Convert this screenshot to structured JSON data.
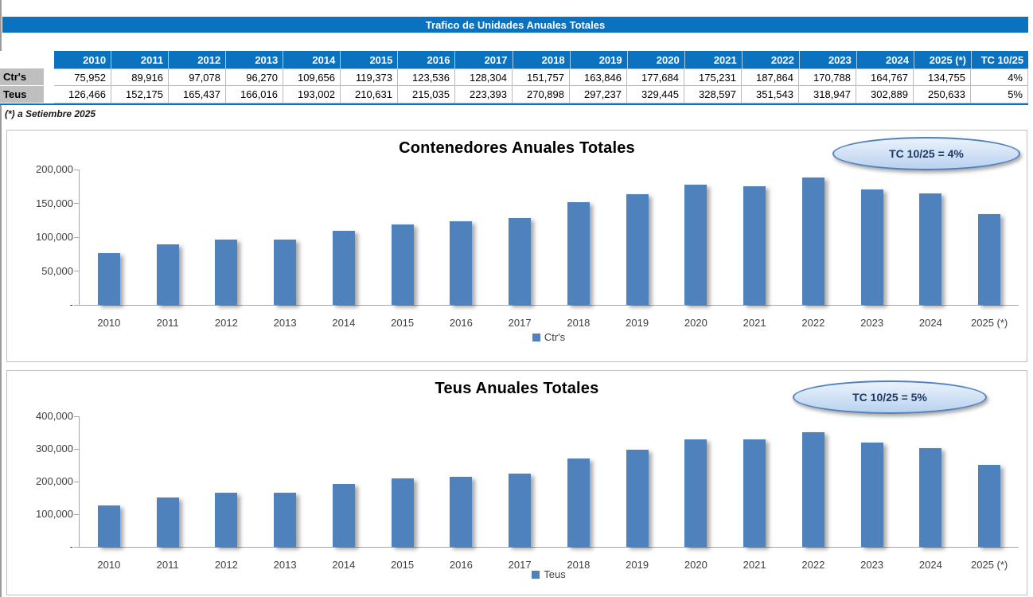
{
  "titlebar": {
    "text": "Trafico de Unidades Anuales Totales"
  },
  "note": "(*) a Setiembre 2025",
  "colors": {
    "header_blue": "#0b72c0",
    "bar_blue": "#4f81bd",
    "row_label_gray": "#bfbfbf",
    "badge_border": "#4f81bd",
    "badge_text": "#1f3864"
  },
  "table": {
    "corner": "",
    "columns": [
      "2010",
      "2011",
      "2012",
      "2013",
      "2014",
      "2015",
      "2016",
      "2017",
      "2018",
      "2019",
      "2020",
      "2021",
      "2022",
      "2023",
      "2024",
      "2025 (*)",
      "TC 10/25"
    ],
    "rows": [
      {
        "label": "Ctr's",
        "values": [
          "75,952",
          "89,916",
          "97,078",
          "96,270",
          "109,656",
          "119,373",
          "123,536",
          "128,304",
          "151,757",
          "163,846",
          "177,684",
          "175,231",
          "187,864",
          "170,788",
          "164,767",
          "134,755",
          "4%"
        ]
      },
      {
        "label": "Teus",
        "values": [
          "126,466",
          "152,175",
          "165,437",
          "166,016",
          "193,002",
          "210,631",
          "215,035",
          "223,393",
          "270,898",
          "297,237",
          "329,445",
          "328,597",
          "351,543",
          "318,947",
          "302,889",
          "250,633",
          "5%"
        ]
      }
    ]
  },
  "chart_data": [
    {
      "type": "bar",
      "title": "Contenedores Anuales Totales",
      "badge": "TC 10/25 = 4%",
      "legend": "Ctr's",
      "categories": [
        "2010",
        "2011",
        "2012",
        "2013",
        "2014",
        "2015",
        "2016",
        "2017",
        "2018",
        "2019",
        "2020",
        "2021",
        "2022",
        "2023",
        "2024",
        "2025 (*)"
      ],
      "values": [
        75952,
        89916,
        97078,
        96270,
        109656,
        119373,
        123536,
        128304,
        151757,
        163846,
        177684,
        175231,
        187864,
        170788,
        164767,
        134755
      ],
      "ylim": [
        0,
        200000
      ],
      "yticks": [
        {
          "value": 200000,
          "label": "200,000"
        },
        {
          "value": 150000,
          "label": "150,000"
        },
        {
          "value": 100000,
          "label": "100,000"
        },
        {
          "value": 50000,
          "label": "50,000"
        },
        {
          "value": 0,
          "label": "-"
        }
      ],
      "grid": false,
      "legend_position": "bottom",
      "bar_color": "#4f81bd"
    },
    {
      "type": "bar",
      "title": "Teus Anuales Totales",
      "badge": "TC 10/25 = 5%",
      "legend": "Teus",
      "categories": [
        "2010",
        "2011",
        "2012",
        "2013",
        "2014",
        "2015",
        "2016",
        "2017",
        "2018",
        "2019",
        "2020",
        "2021",
        "2022",
        "2023",
        "2024",
        "2025 (*)"
      ],
      "values": [
        126466,
        152175,
        165437,
        166016,
        193002,
        210631,
        215035,
        223393,
        270898,
        297237,
        329445,
        328597,
        351543,
        318947,
        302889,
        250633
      ],
      "ylim": [
        0,
        400000
      ],
      "yticks": [
        {
          "value": 400000,
          "label": "400,000"
        },
        {
          "value": 300000,
          "label": "300,000"
        },
        {
          "value": 200000,
          "label": "200,000"
        },
        {
          "value": 100000,
          "label": "100,000"
        },
        {
          "value": 0,
          "label": "-"
        }
      ],
      "grid": false,
      "legend_position": "bottom",
      "bar_color": "#4f81bd"
    }
  ]
}
